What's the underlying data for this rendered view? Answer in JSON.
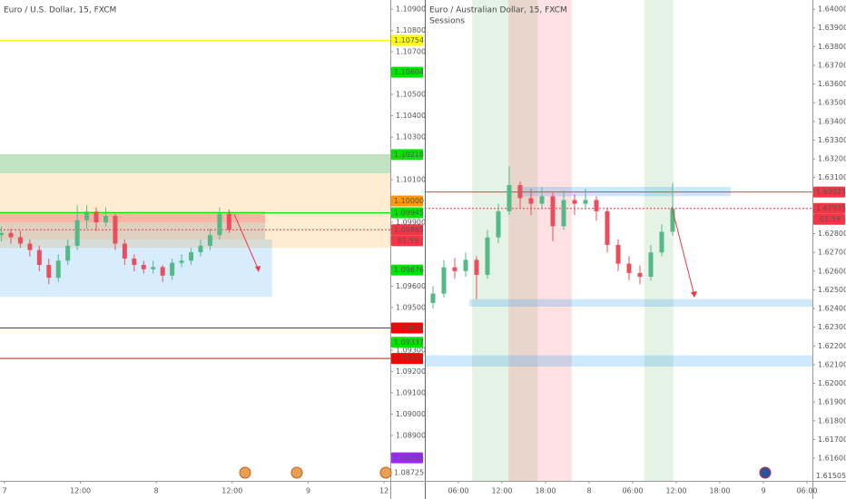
{
  "chart_data": [
    {
      "type": "candlestick",
      "title": "Euro / U.S. Dollar, 15, FXCM",
      "up_color": "#53b987",
      "down_color": "#eb4d5c",
      "x": [
        -0.5,
        1,
        2.5,
        4,
        5.5,
        7,
        8.5,
        10,
        11.5,
        13,
        14.5,
        16,
        17.5,
        19,
        20.5,
        22,
        23.5,
        25,
        26.5,
        28,
        29.5,
        31,
        32.5,
        34,
        35.5
      ],
      "ohlc": [
        [
          1.0984,
          1.0988,
          1.0981,
          1.0985
        ],
        [
          1.0985,
          1.0987,
          1.098,
          1.0983
        ],
        [
          1.0983,
          1.0986,
          1.0978,
          1.098
        ],
        [
          1.098,
          1.0982,
          1.0974,
          1.0977
        ],
        [
          1.0977,
          1.0979,
          1.0967,
          1.097
        ],
        [
          1.097,
          1.0973,
          1.0961,
          1.0964
        ],
        [
          1.0964,
          1.0975,
          1.0962,
          1.0972
        ],
        [
          1.0972,
          1.0982,
          1.097,
          1.0979
        ],
        [
          1.0979,
          1.0998,
          1.0977,
          1.0991
        ],
        [
          1.0991,
          1.0998,
          1.0987,
          1.0995
        ],
        [
          1.0995,
          1.0997,
          1.0986,
          1.099
        ],
        [
          1.099,
          1.0997,
          1.0988,
          1.0993
        ],
        [
          1.0993,
          1.0994,
          1.0977,
          1.098
        ],
        [
          1.098,
          1.0982,
          1.097,
          1.0973
        ],
        [
          1.0973,
          1.0975,
          1.0967,
          1.097
        ],
        [
          1.097,
          1.0972,
          1.0966,
          1.0968
        ],
        [
          1.0968,
          1.0972,
          1.0966,
          1.0969
        ],
        [
          1.0969,
          1.097,
          1.0962,
          1.0965
        ],
        [
          1.0965,
          1.0973,
          1.0963,
          1.0971
        ],
        [
          1.0971,
          1.0975,
          1.0969,
          1.0972
        ],
        [
          1.0972,
          1.0978,
          1.097,
          1.0976
        ],
        [
          1.0976,
          1.0982,
          1.0974,
          1.0979
        ],
        [
          1.0979,
          1.0987,
          1.0977,
          1.0984
        ],
        [
          1.0984,
          1.0997,
          1.0982,
          1.0994
        ],
        [
          1.0994,
          1.0996,
          1.0985,
          1.09865
        ]
      ],
      "xlim": [
        -0.72,
        61.0
      ],
      "xticks": [
        {
          "value": 0,
          "label": "7"
        },
        {
          "value": 12,
          "label": "12:00"
        },
        {
          "value": 24,
          "label": "8"
        },
        {
          "value": 36,
          "label": "12:00"
        },
        {
          "value": 48,
          "label": "9"
        },
        {
          "value": 60,
          "label": "12"
        }
      ],
      "ylim": [
        1.08687,
        1.10943
      ],
      "yticks": [
        {
          "value": 1.109,
          "label": "1.10900"
        },
        {
          "value": 1.108,
          "label": "1.10800"
        },
        {
          "value": 1.107,
          "label": "1.10700"
        },
        {
          "value": 1.105,
          "label": "1.10500"
        },
        {
          "value": 1.104,
          "label": "1.10400"
        },
        {
          "value": 1.103,
          "label": "1.10300"
        },
        {
          "value": 1.101,
          "label": "1.10100"
        },
        {
          "value": 1.099,
          "label": "1.09900"
        },
        {
          "value": 1.096,
          "label": "1.09600"
        },
        {
          "value": 1.095,
          "label": "1.09500"
        },
        {
          "value": 1.093,
          "label": "1.09300"
        },
        {
          "value": 1.092,
          "label": "1.09200"
        },
        {
          "value": 1.091,
          "label": "1.09100"
        },
        {
          "value": 1.09,
          "label": "1.09000"
        },
        {
          "value": 1.089,
          "label": "1.08900"
        }
      ],
      "zones": [
        {
          "y": [
            1.1013,
            1.1022
          ],
          "color": "rgba(76,175,80,0.35)"
        },
        {
          "y": [
            1.0978,
            1.1013
          ],
          "color": "rgba(255,152,0,0.18)"
        },
        {
          "x": [
            -0.72,
            42.3
          ],
          "y": [
            1.0955,
            1.0982
          ],
          "color": "rgba(33,150,243,0.18)"
        },
        {
          "x": [
            -0.72,
            41.2
          ],
          "y": [
            1.0982,
            1.099
          ],
          "color": "rgba(120,123,134,0.25)"
        },
        {
          "x": [
            -0.72,
            41.2
          ],
          "y": [
            1.099,
            1.0995
          ],
          "color": "rgba(242,54,69,0.3)"
        }
      ],
      "price_labels": [
        {
          "value": 1.10754,
          "color": "#ffff00",
          "text_color": "#000000",
          "line": "solid"
        },
        {
          "value": 1.10604,
          "color": "#00e600",
          "text_color": "#000000"
        },
        {
          "value": 1.10218,
          "color": "#00e600",
          "text_color": "#000000"
        },
        {
          "value": 1.1,
          "label": "1.10000",
          "color": "#ff9800",
          "text_color": "#ffffff"
        },
        {
          "value": 1.09945,
          "color": "#00e600",
          "text_color": "#000000",
          "line": "solid"
        },
        {
          "value": 1.09865,
          "color": "#f23645",
          "text_color": "#ffffff",
          "line": "dashed"
        },
        {
          "value": 1.09676,
          "color": "#00e600",
          "text_color": "#000000"
        },
        {
          "value": 1.09404,
          "color": "#ff0000",
          "text_color": "#ffffff",
          "line": "solid"
        },
        {
          "value": 1.09337,
          "color": "#00e600",
          "text_color": "#000000"
        },
        {
          "value": 1.09261,
          "color": "#ff0000",
          "text_color": "#ffffff",
          "line": "solid"
        },
        {
          "value": 1.08795,
          "color": "#9c27ff",
          "text_color": "#ffffff"
        },
        {
          "value": 1.08725,
          "color": "#ffffff",
          "text_color": "#555555"
        }
      ],
      "countdown": "01:59"
    },
    {
      "type": "candlestick",
      "title": "Euro / Australian Dollar, 15, FXCM",
      "subtitle": "Sessions",
      "up_color": "#53b987",
      "down_color": "#eb4d5c",
      "x": [
        2.5,
        4,
        5.5,
        7,
        8.5,
        10,
        11.5,
        13,
        14.5,
        16,
        17.5,
        19,
        20.5,
        22,
        23.5,
        25,
        26.5,
        28,
        29.5,
        31,
        32.5,
        34,
        35.5
      ],
      "ohlc": [
        [
          1.6243,
          1.6252,
          1.624,
          1.6248
        ],
        [
          1.6248,
          1.6266,
          1.6246,
          1.6262
        ],
        [
          1.6262,
          1.6267,
          1.6256,
          1.626
        ],
        [
          1.626,
          1.627,
          1.6257,
          1.6266
        ],
        [
          1.6266,
          1.6268,
          1.6245,
          1.6258
        ],
        [
          1.6258,
          1.6282,
          1.6256,
          1.6278
        ],
        [
          1.6278,
          1.6296,
          1.6275,
          1.6292
        ],
        [
          1.6292,
          1.6316,
          1.629,
          1.6306
        ],
        [
          1.6306,
          1.6308,
          1.6294,
          1.6299
        ],
        [
          1.6299,
          1.6304,
          1.629,
          1.6296
        ],
        [
          1.6296,
          1.6305,
          1.6293,
          1.63
        ],
        [
          1.63,
          1.6302,
          1.6276,
          1.6284
        ],
        [
          1.6284,
          1.6303,
          1.6282,
          1.6298
        ],
        [
          1.6298,
          1.6301,
          1.629,
          1.6296
        ],
        [
          1.6296,
          1.6304,
          1.6293,
          1.6298
        ],
        [
          1.6298,
          1.63,
          1.6287,
          1.6292
        ],
        [
          1.6292,
          1.6294,
          1.627,
          1.6274
        ],
        [
          1.6274,
          1.6277,
          1.626,
          1.6264
        ],
        [
          1.6264,
          1.6268,
          1.6255,
          1.6259
        ],
        [
          1.6259,
          1.6263,
          1.6253,
          1.6257
        ],
        [
          1.6257,
          1.6274,
          1.6255,
          1.627
        ],
        [
          1.627,
          1.6285,
          1.6268,
          1.6281
        ],
        [
          1.6281,
          1.6307,
          1.6279,
          1.62935
        ]
      ],
      "xlim": [
        1.375,
        54.75
      ],
      "xticks": [
        {
          "value": 6,
          "label": "06:00"
        },
        {
          "value": 12,
          "label": "12:00"
        },
        {
          "value": 18,
          "label": "18:00"
        },
        {
          "value": 24,
          "label": "8"
        },
        {
          "value": 30,
          "label": "06:00"
        },
        {
          "value": 36,
          "label": "12:00"
        },
        {
          "value": 42,
          "label": "18:00"
        },
        {
          "value": 48,
          "label": "9"
        },
        {
          "value": 54,
          "label": "06:00"
        }
      ],
      "ylim": [
        1.61479,
        1.64049
      ],
      "yticks": [
        {
          "value": 1.64,
          "label": "1.64000"
        },
        {
          "value": 1.639,
          "label": "1.63900"
        },
        {
          "value": 1.638,
          "label": "1.63800"
        },
        {
          "value": 1.637,
          "label": "1.63700"
        },
        {
          "value": 1.636,
          "label": "1.63600"
        },
        {
          "value": 1.635,
          "label": "1.63500"
        },
        {
          "value": 1.634,
          "label": "1.63400"
        },
        {
          "value": 1.633,
          "label": "1.63300"
        },
        {
          "value": 1.632,
          "label": "1.63200"
        },
        {
          "value": 1.631,
          "label": "1.63100"
        },
        {
          "value": 1.628,
          "label": "1.62800"
        },
        {
          "value": 1.627,
          "label": "1.62700"
        },
        {
          "value": 1.626,
          "label": "1.62600"
        },
        {
          "value": 1.625,
          "label": "1.62500"
        },
        {
          "value": 1.624,
          "label": "1.62400"
        },
        {
          "value": 1.623,
          "label": "1.62300"
        },
        {
          "value": 1.622,
          "label": "1.62200"
        },
        {
          "value": 1.621,
          "label": "1.62100"
        },
        {
          "value": 1.62,
          "label": "1.62000"
        },
        {
          "value": 1.619,
          "label": "1.61900"
        },
        {
          "value": 1.618,
          "label": "1.61800"
        },
        {
          "value": 1.617,
          "label": "1.61700"
        },
        {
          "value": 1.616,
          "label": "1.61600"
        }
      ],
      "zones": [
        {
          "x": [
            7.9,
            12.9
          ],
          "color": "rgba(76,175,80,0.15)"
        },
        {
          "x": [
            12.9,
            16.9
          ],
          "color": "rgba(180,120,90,0.3)"
        },
        {
          "x": [
            16.9,
            21.6
          ],
          "color": "rgba(242,54,69,0.15)"
        },
        {
          "x": [
            31.6,
            35.6
          ],
          "color": "rgba(76,175,80,0.15)"
        },
        {
          "x": [
            14.1,
            43.5
          ],
          "y": [
            1.63,
            1.6305
          ],
          "color": "rgba(33,150,243,0.22)"
        },
        {
          "x": [
            7.5,
            54.75
          ],
          "y": [
            1.6241,
            1.6245
          ],
          "color": "rgba(33,150,243,0.22)"
        },
        {
          "y": [
            1.6209,
            1.6215
          ],
          "color": "rgba(33,150,243,0.22)"
        }
      ],
      "price_labels": [
        {
          "value": 1.63023,
          "color": "#f23645",
          "text_color": "#ffffff",
          "line": "solid"
        },
        {
          "value": 1.62935,
          "color": "#f23645",
          "text_color": "#ffffff",
          "line": "dashed"
        },
        {
          "value": 1.61505,
          "color": "#ffffff",
          "text_color": "#555555"
        }
      ],
      "countdown": "01:59"
    }
  ]
}
